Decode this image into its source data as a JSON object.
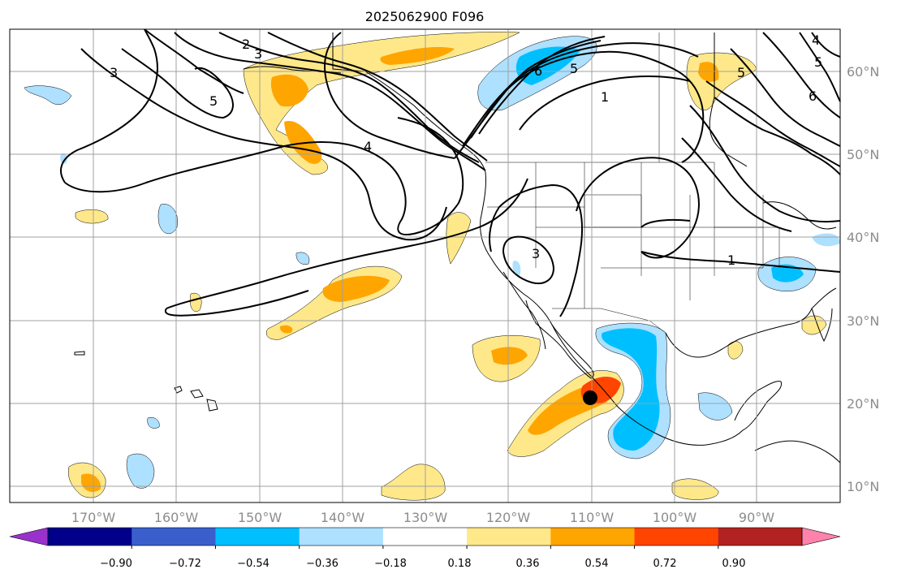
{
  "title": "2025062900 F096",
  "map": {
    "lon_ticks": [
      "170°W",
      "160°W",
      "150°W",
      "140°W",
      "130°W",
      "120°W",
      "110°W",
      "100°W",
      "90°W"
    ],
    "lat_ticks": [
      "60°N",
      "50°N",
      "40°N",
      "30°N",
      "20°N",
      "10°N"
    ],
    "contour_labels": [
      "2",
      "3",
      "3",
      "5",
      "4",
      "6",
      "5",
      "1",
      "5",
      "6",
      "3",
      "1",
      "4",
      "5"
    ],
    "marker": "storm-center"
  },
  "colorbar": {
    "tick_labels": [
      "−0.90",
      "−0.72",
      "−0.54",
      "−0.36",
      "−0.18",
      "0.18",
      "0.36",
      "0.54",
      "0.72",
      "0.90"
    ],
    "colors": [
      "#9932cc",
      "#00008b",
      "#3a5fcd",
      "#00bfff",
      "#aee0ff",
      "#ffffff",
      "#ffe88a",
      "#ffa500",
      "#ff4500",
      "#b22222",
      "#ff82ab"
    ]
  },
  "palette": {
    "land_outline": "#000000",
    "grid": "#a0a0a0",
    "contour": "#000000"
  }
}
